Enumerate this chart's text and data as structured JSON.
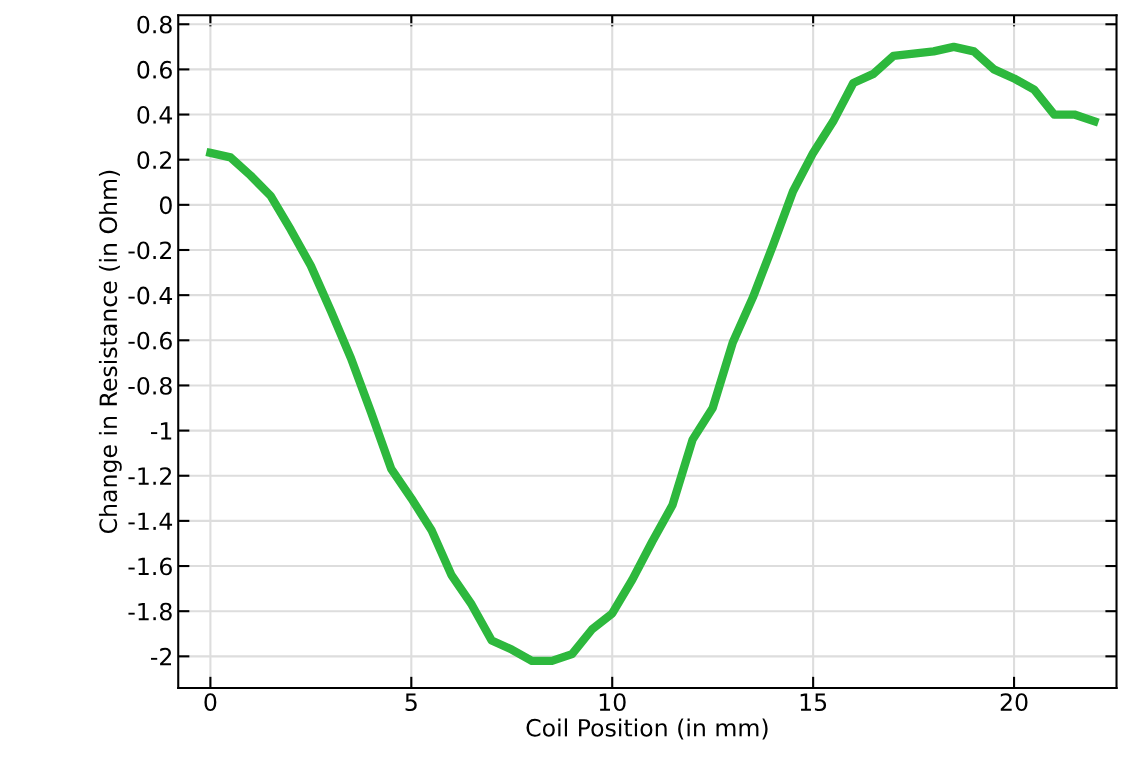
{
  "chart_data": {
    "type": "line",
    "xlabel": "Coil Position (in mm)",
    "ylabel": "Change in Resistance (in Ohm)",
    "x": [
      0,
      0.5,
      1,
      1.5,
      2,
      2.5,
      3,
      3.5,
      4,
      4.5,
      5,
      5.5,
      6,
      6.5,
      7,
      7.5,
      8,
      8.5,
      9,
      9.5,
      10,
      10.5,
      11,
      11.5,
      12,
      12.5,
      13,
      13.5,
      14,
      14.5,
      15,
      15.5,
      16,
      16.5,
      17,
      17.5,
      18,
      18.5,
      19,
      19.5,
      20,
      20.5,
      21,
      21.5,
      22
    ],
    "series": [
      {
        "color": "#2db83d",
        "values": [
          0.23,
          0.21,
          0.13,
          0.04,
          -0.11,
          -0.27,
          -0.47,
          -0.68,
          -0.92,
          -1.17,
          -1.3,
          -1.44,
          -1.64,
          -1.77,
          -1.93,
          -1.97,
          -2.02,
          -2.02,
          -1.99,
          -1.88,
          -1.81,
          -1.66,
          -1.49,
          -1.33,
          -1.04,
          -0.9,
          -0.61,
          -0.41,
          -0.18,
          0.06,
          0.23,
          0.37,
          0.54,
          0.58,
          0.66,
          0.67,
          0.68,
          0.7,
          0.68,
          0.6,
          0.56,
          0.51,
          0.4,
          0.4,
          0.37
        ]
      }
    ],
    "xlim": [
      -0.8,
      22.55
    ],
    "ylim": [
      -2.14,
      0.84
    ],
    "xticks": [
      0,
      5,
      10,
      15,
      20
    ],
    "yticks": [
      -2,
      -1.8,
      -1.6,
      -1.4,
      -1.2,
      -1,
      -0.8,
      -0.6,
      -0.4,
      -0.2,
      0,
      0.2,
      0.4,
      0.6,
      0.8
    ],
    "grid": true,
    "marker": "none",
    "line_style": "solid"
  }
}
